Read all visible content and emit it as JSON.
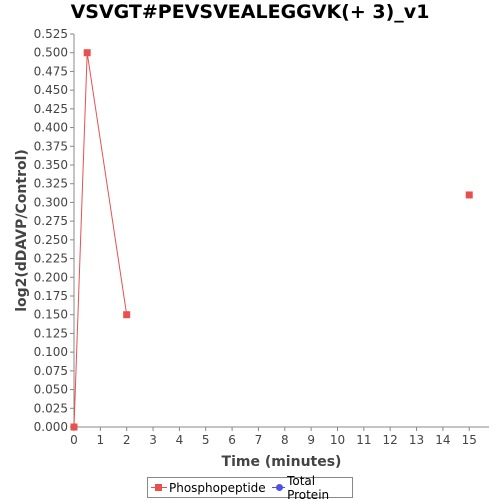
{
  "chart_data": {
    "type": "line",
    "title": "VSVGT#PEVSVEALEGGVK(+ 3)_v1",
    "xlabel": "Time (minutes)",
    "ylabel": "log2(dDAVP/Control)",
    "xlim": [
      0,
      15.75
    ],
    "ylim": [
      0,
      0.525
    ],
    "x_ticks": [
      "0",
      "1",
      "2",
      "3",
      "4",
      "5",
      "6",
      "7",
      "8",
      "9",
      "10",
      "11",
      "12",
      "13",
      "14",
      "15"
    ],
    "y_ticks": [
      "0.000",
      "0.025",
      "0.050",
      "0.075",
      "0.100",
      "0.125",
      "0.150",
      "0.175",
      "0.200",
      "0.225",
      "0.250",
      "0.275",
      "0.300",
      "0.325",
      "0.350",
      "0.375",
      "0.400",
      "0.425",
      "0.450",
      "0.475",
      "0.500",
      "0.525"
    ],
    "grid": false,
    "legend_position": "bottom",
    "series": [
      {
        "name": "Phosphopeptide",
        "color": "#e85050",
        "marker": "square",
        "segments": [
          [
            {
              "x": 0,
              "y": 0.0
            },
            {
              "x": 0.5,
              "y": 0.5
            },
            {
              "x": 2,
              "y": 0.15
            }
          ],
          [
            {
              "x": 15,
              "y": 0.31
            }
          ]
        ]
      },
      {
        "name": "Total Protein",
        "color": "#5050e8",
        "marker": "circle",
        "segments": []
      }
    ]
  }
}
